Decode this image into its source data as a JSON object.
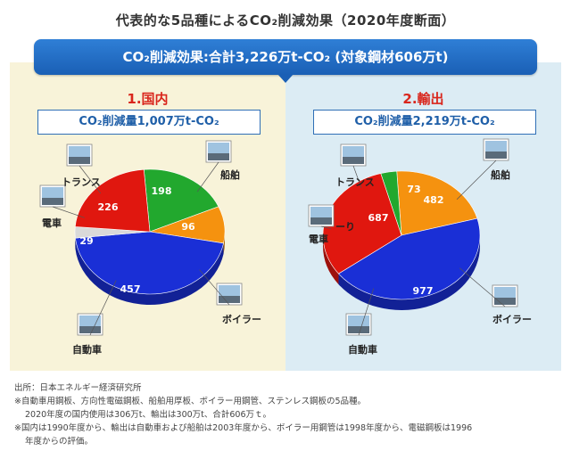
{
  "title": "代表的な5品種によるCO₂削減効果（2020年度断面）",
  "banner": "CO₂削減効果:合計3,226万t-CO₂ (対象鋼材606万t)",
  "panels": [
    {
      "heading": "1.国内",
      "subtotal": "CO₂削減量1,007万t-CO₂"
    },
    {
      "heading": "2.輸出",
      "subtotal": "CO₂削減量2,219万t-CO₂"
    }
  ],
  "chart_data": [
    {
      "type": "pie",
      "title": "1.国内",
      "subtitle": "CO₂削減量1,007万t-CO₂",
      "slices": [
        {
          "label": "船舶",
          "value": 198,
          "color": "#22a82e"
        },
        {
          "label": "ボイラー",
          "value": 96,
          "color": "#f5920f"
        },
        {
          "label": "自動車",
          "value": 457,
          "color": "#1a2fd6"
        },
        {
          "label": "電車",
          "value": 29,
          "color": "#d9d9d9"
        },
        {
          "label": "トランス",
          "value": 226,
          "color": "#e0170f"
        }
      ]
    },
    {
      "type": "pie",
      "title": "2.輸出",
      "subtitle": "CO₂削減量2,219万t-CO₂",
      "slices": [
        {
          "label": "船舶",
          "value": 482,
          "color": "#f5920f"
        },
        {
          "label": "ボイラー",
          "value": 977,
          "color": "#1a2fd6"
        },
        {
          "label": "自動車",
          "value": 687,
          "color": "#e0170f"
        },
        {
          "label": "電車",
          "value": 73,
          "color": "#22a82e"
        },
        {
          "label": "トランス",
          "value": 0,
          "color": "#d9d9d9"
        }
      ]
    }
  ],
  "notes": {
    "source": "出所：日本エネルギー経済研究所",
    "note1a": "※自動車用鋼板、方向性電磁鋼板、船舶用厚板、ボイラー用鋼管、ステンレス鋼板の5品種。",
    "note1b": "2020年度の国内使用は306万t、輸出は300万t、合計606万ｔ。",
    "note2a": "※国内は1990年度から、輸出は自動車および船舶は2003年度から、ボイラー用鋼管は1998年度から、電磁鋼板は1996",
    "note2b": "年度からの評価。"
  },
  "export_partial_label": "ーり"
}
